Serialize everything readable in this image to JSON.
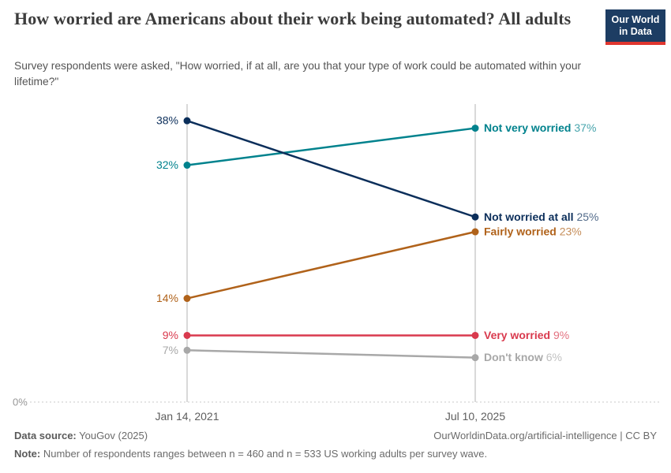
{
  "header": {
    "title": "How worried are Americans about their work being automated? All adults",
    "subtitle": "Survey respondents were asked, \"How worried, if at all, are you that your type of work could be automated within your lifetime?\"",
    "logo": {
      "line1": "Our World",
      "line2": "in Data",
      "bg_color": "#1d3d63",
      "bar_color": "#e0362f"
    }
  },
  "chart_data": {
    "type": "line",
    "subtype": "slope",
    "x": [
      "Jan 14, 2021",
      "Jul 10, 2025"
    ],
    "series": [
      {
        "name": "Not very worried",
        "values": [
          32,
          37
        ],
        "color": "#00828d"
      },
      {
        "name": "Not worried at all",
        "values": [
          38,
          25
        ],
        "color": "#0b2e5a"
      },
      {
        "name": "Fairly worried",
        "values": [
          14,
          23
        ],
        "color": "#b0621a"
      },
      {
        "name": "Very worried",
        "values": [
          9,
          9
        ],
        "color": "#d93a4e"
      },
      {
        "name": "Don't know",
        "values": [
          7,
          6
        ],
        "color": "#a8a8a8"
      }
    ],
    "ylim": [
      0,
      40
    ],
    "baseline_label": "0%",
    "value_suffix": "%",
    "grid": "baseline-only",
    "legend": "inline-right-labels",
    "axis_color": "#d9d9d9",
    "tick_label_color": "#5e5e5e"
  },
  "footer": {
    "datasource_label": "Data source:",
    "datasource_value": " YouGov (2025)",
    "attribution": "OurWorldinData.org/artificial-intelligence | CC BY",
    "note_label": "Note:",
    "note_value": " Number of respondents ranges between n = 460 and n = 533 US working adults per survey wave."
  }
}
